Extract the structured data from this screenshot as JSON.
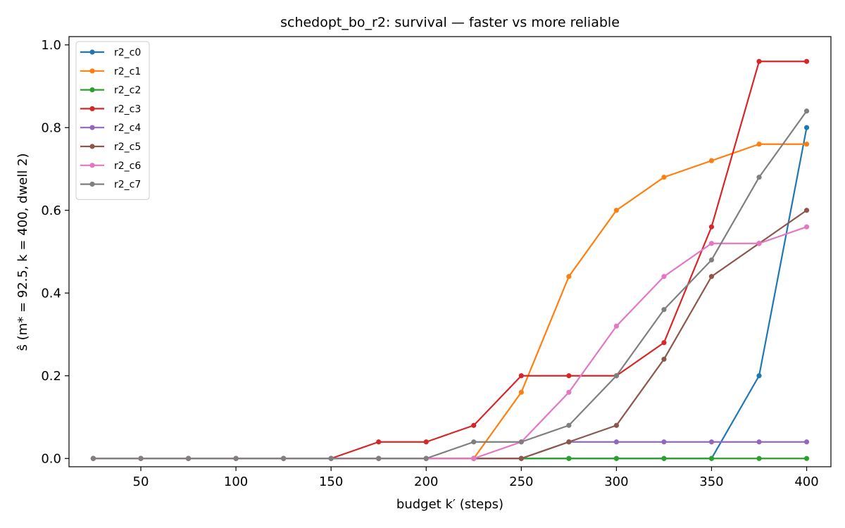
{
  "chart_data": {
    "type": "line",
    "title": "schedopt_bo_r2: survival — faster vs more reliable",
    "xlabel": "budget k′ (steps)",
    "ylabel": "ŝ (m* = 92.5, k = 400, dwell 2)",
    "xlim": [
      12.25,
      412.75
    ],
    "ylim": [
      -0.02,
      1.02
    ],
    "xticks": [
      50,
      100,
      150,
      200,
      250,
      300,
      350,
      400
    ],
    "yticks": [
      0.0,
      0.2,
      0.4,
      0.6,
      0.8,
      1.0
    ],
    "xtick_labels": [
      "50",
      "100",
      "150",
      "200",
      "250",
      "300",
      "350",
      "400"
    ],
    "ytick_labels": [
      "0.0",
      "0.2",
      "0.4",
      "0.6",
      "0.8",
      "1.0"
    ],
    "grid": false,
    "legend_position": "upper-left",
    "x": [
      25,
      50,
      75,
      100,
      125,
      150,
      175,
      200,
      225,
      250,
      275,
      300,
      325,
      350,
      375,
      400
    ],
    "series": [
      {
        "name": "r2_c0",
        "color": "#1f77b4",
        "values": [
          0,
          0,
          0,
          0,
          0,
          0,
          0,
          0,
          0,
          0,
          0,
          0,
          0,
          0,
          0.2,
          0.8
        ]
      },
      {
        "name": "r2_c1",
        "color": "#ff7f0e",
        "values": [
          0,
          0,
          0,
          0,
          0,
          0,
          0,
          0,
          0,
          0.16,
          0.44,
          0.6,
          0.68,
          0.72,
          0.76,
          0.76
        ]
      },
      {
        "name": "r2_c2",
        "color": "#2ca02c",
        "values": [
          0,
          0,
          0,
          0,
          0,
          0,
          0,
          0,
          0,
          0,
          0,
          0,
          0,
          0,
          0,
          0
        ]
      },
      {
        "name": "r2_c3",
        "color": "#d62728",
        "values": [
          0,
          0,
          0,
          0,
          0,
          0,
          0.04,
          0.04,
          0.08,
          0.2,
          0.2,
          0.2,
          0.28,
          0.56,
          0.96,
          0.96
        ]
      },
      {
        "name": "r2_c4",
        "color": "#9467bd",
        "values": [
          0,
          0,
          0,
          0,
          0,
          0,
          0,
          0,
          0,
          0,
          0.04,
          0.04,
          0.04,
          0.04,
          0.04,
          0.04
        ]
      },
      {
        "name": "r2_c5",
        "color": "#8c564b",
        "values": [
          0,
          0,
          0,
          0,
          0,
          0,
          0,
          0,
          0,
          0,
          0.04,
          0.08,
          0.24,
          0.44,
          0.52,
          0.6
        ]
      },
      {
        "name": "r2_c6",
        "color": "#e377c2",
        "values": [
          0,
          0,
          0,
          0,
          0,
          0,
          0,
          0,
          0,
          0.04,
          0.16,
          0.32,
          0.44,
          0.52,
          0.52,
          0.56
        ]
      },
      {
        "name": "r2_c7",
        "color": "#7f7f7f",
        "values": [
          0,
          0,
          0,
          0,
          0,
          0,
          0,
          0,
          0.04,
          0.04,
          0.08,
          0.2,
          0.36,
          0.48,
          0.68,
          0.84
        ]
      }
    ]
  }
}
